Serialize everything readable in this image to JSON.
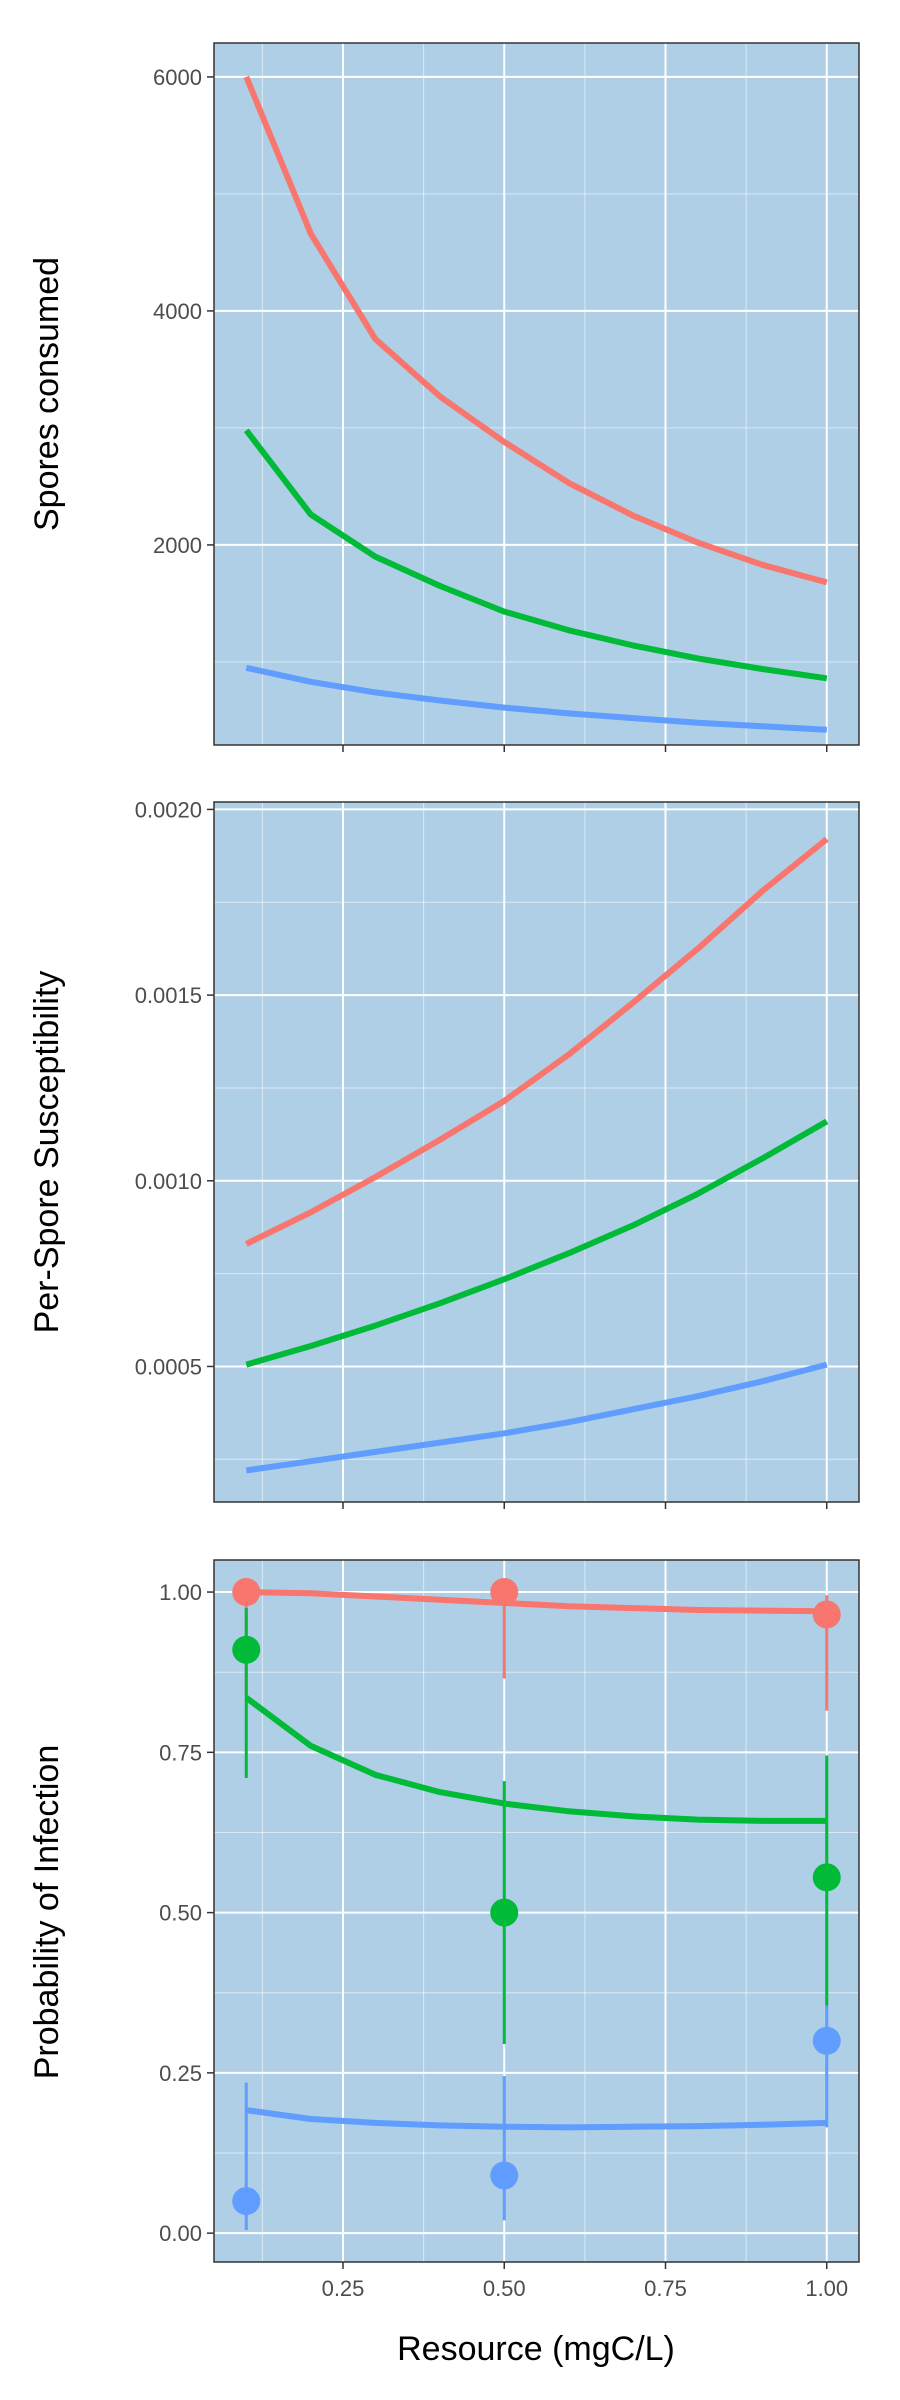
{
  "colors": {
    "panel_bg": "#aecfe6",
    "grid": "#ffffff",
    "red": "#f8766d",
    "green": "#00ba38",
    "blue": "#619cff",
    "border": "#333333"
  },
  "chart_data": [
    {
      "type": "line",
      "ylabel": "Spores consumed",
      "xlabel": "",
      "xlim": [
        0.05,
        1.05
      ],
      "ylim": [
        290,
        6290
      ],
      "yticks": [
        2000,
        4000,
        6000
      ],
      "ytick_labels": [
        "2000",
        "4000",
        "6000"
      ],
      "grid": true,
      "series": [
        {
          "color_key": "red",
          "x": [
            0.1,
            0.2,
            0.3,
            0.4,
            0.5,
            0.6,
            0.7,
            0.8,
            0.9,
            1.0
          ],
          "y": [
            6000,
            4660,
            3760,
            3270,
            2880,
            2530,
            2250,
            2020,
            1830,
            1680
          ]
        },
        {
          "color_key": "green",
          "x": [
            0.1,
            0.2,
            0.3,
            0.4,
            0.5,
            0.6,
            0.7,
            0.8,
            0.9,
            1.0
          ],
          "y": [
            2980,
            2260,
            1900,
            1650,
            1430,
            1270,
            1140,
            1030,
            940,
            860
          ]
        },
        {
          "color_key": "blue",
          "x": [
            0.1,
            0.2,
            0.3,
            0.4,
            0.5,
            0.6,
            0.7,
            0.8,
            0.9,
            1.0
          ],
          "y": [
            950,
            830,
            740,
            670,
            610,
            560,
            520,
            480,
            450,
            420
          ]
        }
      ]
    },
    {
      "type": "line",
      "ylabel": "Per-Spore Susceptibility",
      "xlabel": "",
      "xlim": [
        0.05,
        1.05
      ],
      "ylim": [
        0.000135,
        0.00202
      ],
      "yticks": [
        0.0005,
        0.001,
        0.0015,
        0.002
      ],
      "ytick_labels": [
        "0.0005",
        "0.0010",
        "0.0015",
        "0.0020"
      ],
      "grid": true,
      "series": [
        {
          "color_key": "red",
          "x": [
            0.1,
            0.2,
            0.3,
            0.4,
            0.5,
            0.6,
            0.7,
            0.8,
            0.9,
            1.0
          ],
          "y": [
            0.00083,
            0.000915,
            0.00101,
            0.00111,
            0.001215,
            0.00134,
            0.00148,
            0.001625,
            0.00178,
            0.00192
          ]
        },
        {
          "color_key": "green",
          "x": [
            0.1,
            0.2,
            0.3,
            0.4,
            0.5,
            0.6,
            0.7,
            0.8,
            0.9,
            1.0
          ],
          "y": [
            0.000505,
            0.000555,
            0.00061,
            0.00067,
            0.000735,
            0.000805,
            0.00088,
            0.000965,
            0.00106,
            0.00116
          ]
        },
        {
          "color_key": "blue",
          "x": [
            0.1,
            0.2,
            0.3,
            0.4,
            0.5,
            0.6,
            0.7,
            0.8,
            0.9,
            1.0
          ],
          "y": [
            0.00022,
            0.000245,
            0.00027,
            0.000295,
            0.00032,
            0.00035,
            0.000385,
            0.00042,
            0.00046,
            0.000505
          ]
        }
      ]
    },
    {
      "type": "line",
      "ylabel": "Probability of Infection",
      "xlabel": "Resource (mgC/L)",
      "xlim": [
        0.05,
        1.05
      ],
      "ylim": [
        -0.045,
        1.05
      ],
      "yticks": [
        0,
        0.25,
        0.5,
        0.75,
        1.0
      ],
      "ytick_labels": [
        "0.00",
        "0.25",
        "0.50",
        "0.75",
        "1.00"
      ],
      "xticks": [
        0.25,
        0.5,
        0.75,
        1.0
      ],
      "xtick_labels": [
        "0.25",
        "0.50",
        "0.75",
        "1.00"
      ],
      "grid": true,
      "series": [
        {
          "color_key": "red",
          "x": [
            0.1,
            0.2,
            0.3,
            0.4,
            0.5,
            0.6,
            0.7,
            0.8,
            0.9,
            1.0
          ],
          "y": [
            1.0,
            0.998,
            0.993,
            0.988,
            0.983,
            0.978,
            0.975,
            0.972,
            0.971,
            0.97
          ]
        },
        {
          "color_key": "green",
          "x": [
            0.1,
            0.2,
            0.3,
            0.4,
            0.5,
            0.6,
            0.7,
            0.8,
            0.9,
            1.0
          ],
          "y": [
            0.835,
            0.76,
            0.715,
            0.688,
            0.67,
            0.658,
            0.65,
            0.645,
            0.643,
            0.643
          ]
        },
        {
          "color_key": "blue",
          "x": [
            0.1,
            0.2,
            0.3,
            0.4,
            0.5,
            0.6,
            0.7,
            0.8,
            0.9,
            1.0
          ],
          "y": [
            0.192,
            0.178,
            0.172,
            0.168,
            0.166,
            0.165,
            0.166,
            0.167,
            0.169,
            0.172
          ]
        }
      ],
      "points": [
        {
          "color_key": "red",
          "x": 0.1,
          "y": 1.0,
          "lo": 0.84,
          "hi": 1.0
        },
        {
          "color_key": "red",
          "x": 0.5,
          "y": 1.0,
          "lo": 0.865,
          "hi": 1.0
        },
        {
          "color_key": "red",
          "x": 1.0,
          "y": 0.965,
          "lo": 0.815,
          "hi": 0.995
        },
        {
          "color_key": "green",
          "x": 0.1,
          "y": 0.91,
          "lo": 0.71,
          "hi": 0.975
        },
        {
          "color_key": "green",
          "x": 0.5,
          "y": 0.5,
          "lo": 0.295,
          "hi": 0.705
        },
        {
          "color_key": "green",
          "x": 1.0,
          "y": 0.555,
          "lo": 0.355,
          "hi": 0.745
        },
        {
          "color_key": "blue",
          "x": 0.1,
          "y": 0.05,
          "lo": 0.005,
          "hi": 0.235
        },
        {
          "color_key": "blue",
          "x": 0.5,
          "y": 0.09,
          "lo": 0.02,
          "hi": 0.245
        },
        {
          "color_key": "blue",
          "x": 1.0,
          "y": 0.3,
          "lo": 0.165,
          "hi": 0.355
        }
      ]
    }
  ]
}
